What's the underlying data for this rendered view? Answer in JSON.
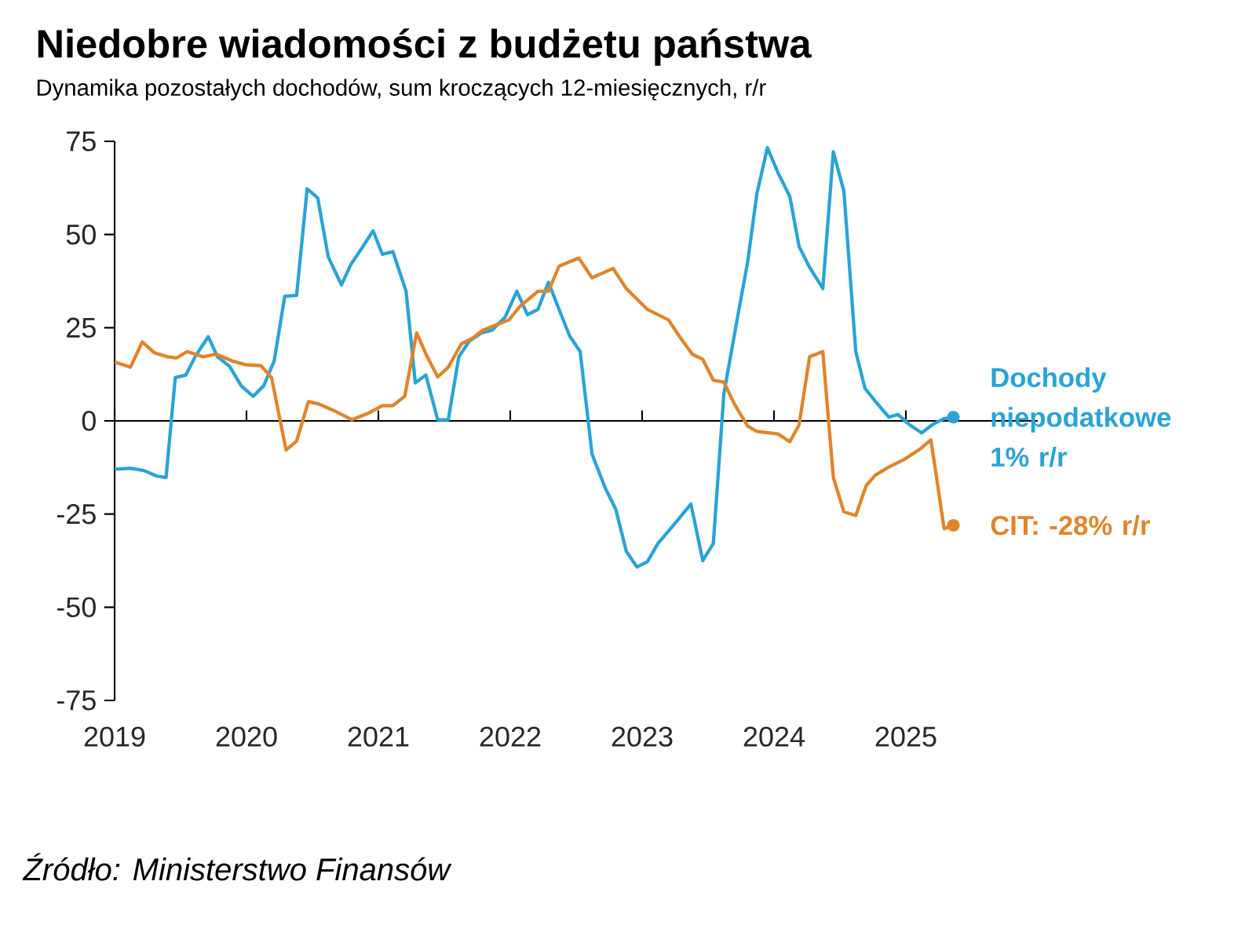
{
  "chart_data": {
    "type": "line",
    "title": "Niedobre wiadomości z budżetu państwa",
    "subtitle": "Dynamika  pozostałych dochodów, sum kroczących 12-miesięcznych, r/r",
    "annotations": [
      "Źródło: Ministerstwo Finansów"
    ],
    "xlim": [
      2019,
      2026
    ],
    "xticks": [
      2019,
      2020,
      2021,
      2022,
      2023,
      2024,
      2025
    ],
    "ylim": [
      -75,
      75
    ],
    "yticks": [
      -75,
      -50,
      -25,
      0,
      25,
      50,
      75
    ],
    "series": [
      {
        "name": "Dochody niepodatkowe 1% r/r",
        "color": "#29a3d6",
        "x": [
          2019.0,
          2019.12,
          2019.22,
          2019.32,
          2019.39,
          2019.46,
          2019.54,
          2019.61,
          2019.71,
          2019.78,
          2019.87,
          2019.96,
          2020.05,
          2020.13,
          2020.21,
          2020.29,
          2020.38,
          2020.46,
          2020.54,
          2020.62,
          2020.72,
          2020.79,
          2020.87,
          2020.96,
          2021.03,
          2021.11,
          2021.21,
          2021.28,
          2021.36,
          2021.45,
          2021.53,
          2021.61,
          2021.69,
          2021.78,
          2021.86,
          2021.96,
          2022.05,
          2022.13,
          2022.21,
          2022.29,
          2022.37,
          2022.45,
          2022.53,
          2022.62,
          2022.72,
          2022.8,
          2022.88,
          2022.96,
          2023.04,
          2023.12,
          2023.24,
          2023.37,
          2023.46,
          2023.54,
          2023.62,
          2023.72,
          2023.8,
          2023.87,
          2023.95,
          2024.03,
          2024.12,
          2024.19,
          2024.27,
          2024.37,
          2024.45,
          2024.53,
          2024.62,
          2024.69,
          2024.77,
          2024.87,
          2024.94,
          2025.03,
          2025.12,
          2025.21,
          2025.29,
          2025.36
        ],
        "values": [
          -13,
          -12.7,
          -13.3,
          -14.8,
          -15.2,
          11.6,
          12.3,
          17.2,
          22.6,
          17.2,
          14.7,
          9.4,
          6.6,
          9.4,
          16.1,
          33.4,
          33.7,
          62.3,
          59.8,
          44,
          36.5,
          41.9,
          46.1,
          51,
          44.7,
          45.4,
          34.8,
          10.2,
          12.3,
          0.3,
          0.3,
          17.2,
          21.4,
          23.6,
          24.3,
          27.8,
          34.8,
          28.5,
          29.9,
          37.2,
          29.9,
          22.8,
          18.6,
          -8.9,
          -18,
          -23.7,
          -35,
          -39.2,
          -37.8,
          -32.9,
          -27.9,
          -22.3,
          -37.5,
          -32.9,
          7.3,
          27.1,
          42.6,
          60.9,
          73.3,
          66.6,
          60.2,
          46.8,
          41.2,
          35.5,
          72.2,
          61.6,
          18.6,
          8.7,
          5.2,
          1,
          1.7,
          -1.1,
          -3.2,
          -0.8,
          0.6,
          1
        ]
      },
      {
        "name": "CIT: -28% r/r",
        "color": "#e0842a",
        "x": [
          2019.0,
          2019.12,
          2019.21,
          2019.3,
          2019.4,
          2019.47,
          2019.55,
          2019.67,
          2019.77,
          2019.89,
          2019.99,
          2020.11,
          2020.19,
          2020.3,
          2020.38,
          2020.47,
          2020.55,
          2020.66,
          2020.8,
          2020.92,
          2021.03,
          2021.11,
          2021.2,
          2021.29,
          2021.37,
          2021.45,
          2021.53,
          2021.63,
          2021.71,
          2021.79,
          2021.89,
          2021.99,
          2022.07,
          2022.21,
          2022.29,
          2022.37,
          2022.52,
          2022.62,
          2022.78,
          2022.88,
          2023.04,
          2023.2,
          2023.28,
          2023.38,
          2023.46,
          2023.54,
          2023.62,
          2023.7,
          2023.8,
          2023.87,
          2024.03,
          2024.12,
          2024.19,
          2024.27,
          2024.37,
          2024.45,
          2024.53,
          2024.62,
          2024.7,
          2024.77,
          2024.87,
          2024.99,
          2025.11,
          2025.19,
          2025.29,
          2025.36
        ],
        "values": [
          15.8,
          14.4,
          21.2,
          18.3,
          17.2,
          16.9,
          18.6,
          17.2,
          17.9,
          16.1,
          15.1,
          14.8,
          11.6,
          -7.8,
          -5.4,
          5.2,
          4.5,
          2.8,
          0.3,
          2,
          4.1,
          4.1,
          6.6,
          23.6,
          17.2,
          11.8,
          14.4,
          20.7,
          22.1,
          24.3,
          25.7,
          27.1,
          30.6,
          34.8,
          34.8,
          41.5,
          43.7,
          38.4,
          40.9,
          35.5,
          29.9,
          27.1,
          22.8,
          17.9,
          16.5,
          10.9,
          10.4,
          4.5,
          -1.4,
          -2.8,
          -3.5,
          -5.6,
          -1.1,
          17.2,
          18.6,
          -15.2,
          -24.4,
          -25.4,
          -17.3,
          -14.5,
          -12.4,
          -10.3,
          -7.5,
          -5.1,
          -28.9,
          -28
        ]
      }
    ]
  }
}
